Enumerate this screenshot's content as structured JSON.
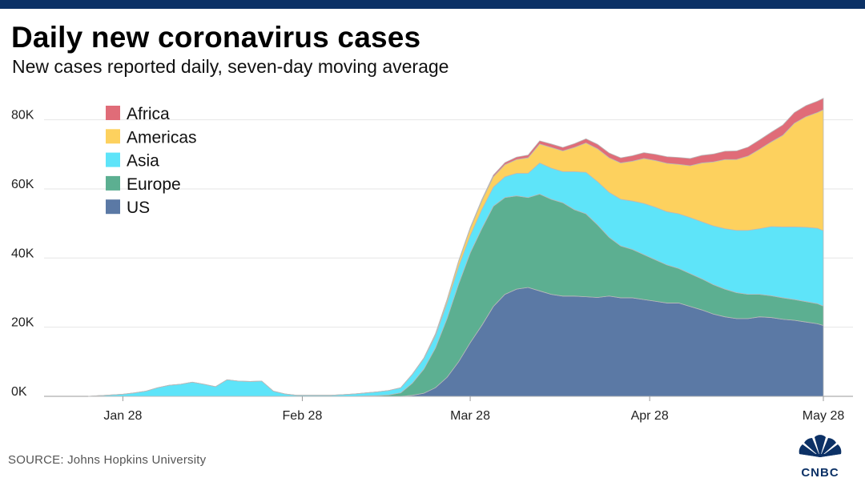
{
  "header": {
    "title": "Daily new coronavirus cases",
    "subtitle": "New cases reported daily, seven-day moving average"
  },
  "footer": {
    "source": "SOURCE: Johns Hopkins University",
    "logo_text": "CNBC"
  },
  "colors": {
    "topbar": "#0c3166",
    "Africa": "#e06c78",
    "Americas": "#fdd15e",
    "Asia": "#5ee4f9",
    "Europe": "#5caf91",
    "US": "#5b79a5"
  },
  "chart_data": {
    "type": "area",
    "stacked": true,
    "title": "Daily new coronavirus cases",
    "subtitle": "New cases reported daily, seven-day moving average",
    "xlabel": "",
    "ylabel": "",
    "x_day_range": [
      0,
      127
    ],
    "x_day_start_date": "Jan 22",
    "ylim": [
      0,
      85000
    ],
    "y_ticks": [
      0,
      20000,
      40000,
      60000,
      80000
    ],
    "y_tick_labels": [
      "0K",
      "20K",
      "40K",
      "60K",
      "80K"
    ],
    "x_ticks": [
      {
        "day": 6,
        "label": "Jan 28"
      },
      {
        "day": 37,
        "label": "Feb 28"
      },
      {
        "day": 66,
        "label": "Mar 28"
      },
      {
        "day": 97,
        "label": "Apr 28"
      },
      {
        "day": 127,
        "label": "May 28"
      }
    ],
    "grid": true,
    "legend_position": "top-left",
    "legend_order": [
      "Africa",
      "Americas",
      "Asia",
      "Europe",
      "US"
    ],
    "x": [
      0,
      4,
      6,
      8,
      10,
      12,
      14,
      16,
      18,
      20,
      22,
      24,
      26,
      28,
      30,
      32,
      34,
      36,
      38,
      40,
      42,
      44,
      46,
      48,
      50,
      52,
      54,
      56,
      58,
      60,
      62,
      64,
      66,
      68,
      70,
      72,
      74,
      76,
      78,
      80,
      82,
      84,
      86,
      88,
      90,
      92,
      94,
      96,
      98,
      100,
      102,
      104,
      106,
      108,
      110,
      112,
      114,
      116,
      118,
      120,
      122,
      124,
      126,
      127
    ],
    "series": [
      {
        "name": "US",
        "values": [
          0,
          0,
          0,
          0,
          0,
          0,
          0,
          0,
          0,
          0,
          0,
          0,
          0,
          0,
          0,
          0,
          0,
          0,
          0,
          0,
          0,
          0,
          0,
          0,
          0,
          0,
          0,
          300,
          900,
          2500,
          5500,
          10000,
          15500,
          20500,
          26000,
          29500,
          31000,
          31500,
          30500,
          29500,
          29000,
          29000,
          28800,
          28600,
          29000,
          28500,
          28500,
          28000,
          27500,
          27000,
          27000,
          26000,
          25000,
          23800,
          23000,
          22500,
          22500,
          23000,
          22800,
          22300,
          22000,
          21500,
          21000,
          20500
        ]
      },
      {
        "name": "Europe",
        "values": [
          0,
          0,
          0,
          0,
          0,
          0,
          0,
          0,
          0,
          0,
          0,
          0,
          0,
          0,
          0,
          0,
          0,
          0,
          0,
          0,
          0,
          0,
          0,
          100,
          200,
          400,
          1000,
          3500,
          7000,
          11500,
          17000,
          22500,
          26000,
          28000,
          29000,
          28000,
          27000,
          26000,
          28000,
          27500,
          27000,
          25000,
          24000,
          21000,
          17000,
          15000,
          14000,
          13000,
          12000,
          11000,
          10000,
          9500,
          9000,
          8500,
          8000,
          7500,
          7000,
          6500,
          6300,
          6200,
          6000,
          5900,
          5800,
          5600
        ]
      },
      {
        "name": "Asia",
        "values": [
          0,
          400,
          600,
          1000,
          1500,
          2500,
          3200,
          3500,
          4100,
          3500,
          2800,
          4800,
          4400,
          4300,
          4400,
          1500,
          700,
          300,
          300,
          300,
          300,
          500,
          700,
          900,
          1100,
          1300,
          1500,
          2500,
          3000,
          3500,
          4500,
          5000,
          5000,
          5500,
          5500,
          6000,
          6500,
          7000,
          9000,
          9000,
          9000,
          11000,
          12000,
          12500,
          13000,
          13500,
          14000,
          14800,
          15200,
          15400,
          15800,
          16200,
          16500,
          17000,
          17500,
          18000,
          18500,
          19000,
          20000,
          20500,
          21000,
          21500,
          21800,
          21800
        ]
      },
      {
        "name": "Americas",
        "values": [
          0,
          0,
          0,
          0,
          0,
          0,
          0,
          0,
          0,
          0,
          0,
          0,
          0,
          0,
          0,
          0,
          0,
          0,
          0,
          0,
          0,
          0,
          0,
          0,
          0,
          0,
          0,
          100,
          200,
          500,
          900,
          1500,
          2000,
          2500,
          3000,
          3500,
          4000,
          4500,
          5500,
          6000,
          6000,
          7000,
          8500,
          9500,
          10000,
          10500,
          11500,
          13000,
          13500,
          14000,
          14300,
          15000,
          17000,
          18500,
          20000,
          20500,
          21500,
          23000,
          24500,
          26500,
          30000,
          32000,
          33500,
          35000
        ]
      },
      {
        "name": "Africa",
        "values": [
          0,
          0,
          0,
          0,
          0,
          0,
          0,
          0,
          0,
          0,
          0,
          0,
          0,
          0,
          0,
          0,
          0,
          0,
          0,
          0,
          0,
          0,
          0,
          0,
          0,
          0,
          0,
          0,
          0,
          100,
          100,
          200,
          300,
          400,
          500,
          600,
          700,
          800,
          900,
          1000,
          1000,
          1100,
          1200,
          1300,
          1400,
          1500,
          1600,
          1700,
          1800,
          1900,
          2000,
          2100,
          2200,
          2300,
          2400,
          2500,
          2600,
          2700,
          2800,
          3000,
          3100,
          3200,
          3300,
          3300
        ]
      }
    ]
  }
}
